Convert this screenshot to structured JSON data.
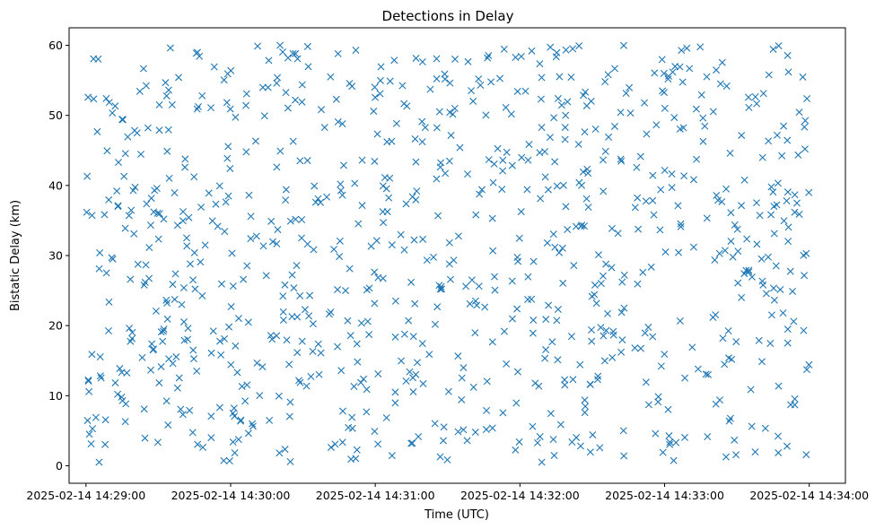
{
  "chart_data": {
    "type": "scatter",
    "title": "Detections in Delay",
    "xlabel": "Time (UTC)",
    "ylabel": "Bistatic Delay (km)",
    "marker": "x",
    "color": "#1f77b4",
    "grid": false,
    "x_ticks": [
      "2025-02-14 14:29:00",
      "2025-02-14 14:30:00",
      "2025-02-14 14:31:00",
      "2025-02-14 14:32:00",
      "2025-02-14 14:33:00",
      "2025-02-14 14:34:00"
    ],
    "xlim": [
      "2025-02-14 14:28:53",
      "2025-02-14 14:34:15"
    ],
    "y_ticks": [
      0,
      10,
      20,
      30,
      40,
      50,
      60
    ],
    "ylim": [
      -2.5,
      62.5
    ],
    "x_start": "2025-02-14 14:29:00",
    "x_end": "2025-02-14 14:34:00",
    "point_count": 900,
    "points_seed": 20250214
  }
}
